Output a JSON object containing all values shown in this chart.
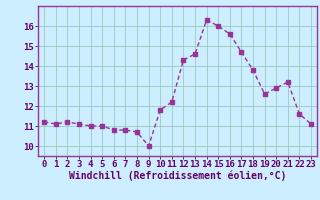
{
  "x": [
    0,
    1,
    2,
    3,
    4,
    5,
    6,
    7,
    8,
    9,
    10,
    11,
    12,
    13,
    14,
    15,
    16,
    17,
    18,
    19,
    20,
    21,
    22,
    23
  ],
  "y": [
    11.2,
    11.1,
    11.2,
    11.1,
    11.0,
    11.0,
    10.8,
    10.8,
    10.7,
    10.0,
    11.8,
    12.2,
    14.3,
    14.6,
    16.3,
    16.0,
    15.6,
    14.7,
    13.8,
    12.6,
    12.9,
    13.2,
    11.6,
    11.1
  ],
  "line_color": "#993399",
  "marker": "s",
  "marker_size": 2.5,
  "linewidth": 1.0,
  "background_color": "#cceeff",
  "grid_color": "#99ccbb",
  "xlabel": "Windchill (Refroidissement éolien,°C)",
  "xlabel_fontsize": 7,
  "tick_fontsize": 6.5,
  "ylim": [
    9.5,
    17.0
  ],
  "xlim": [
    -0.5,
    23.5
  ],
  "yticks": [
    10,
    11,
    12,
    13,
    14,
    15,
    16
  ],
  "xticks": [
    0,
    1,
    2,
    3,
    4,
    5,
    6,
    7,
    8,
    9,
    10,
    11,
    12,
    13,
    14,
    15,
    16,
    17,
    18,
    19,
    20,
    21,
    22,
    23
  ]
}
